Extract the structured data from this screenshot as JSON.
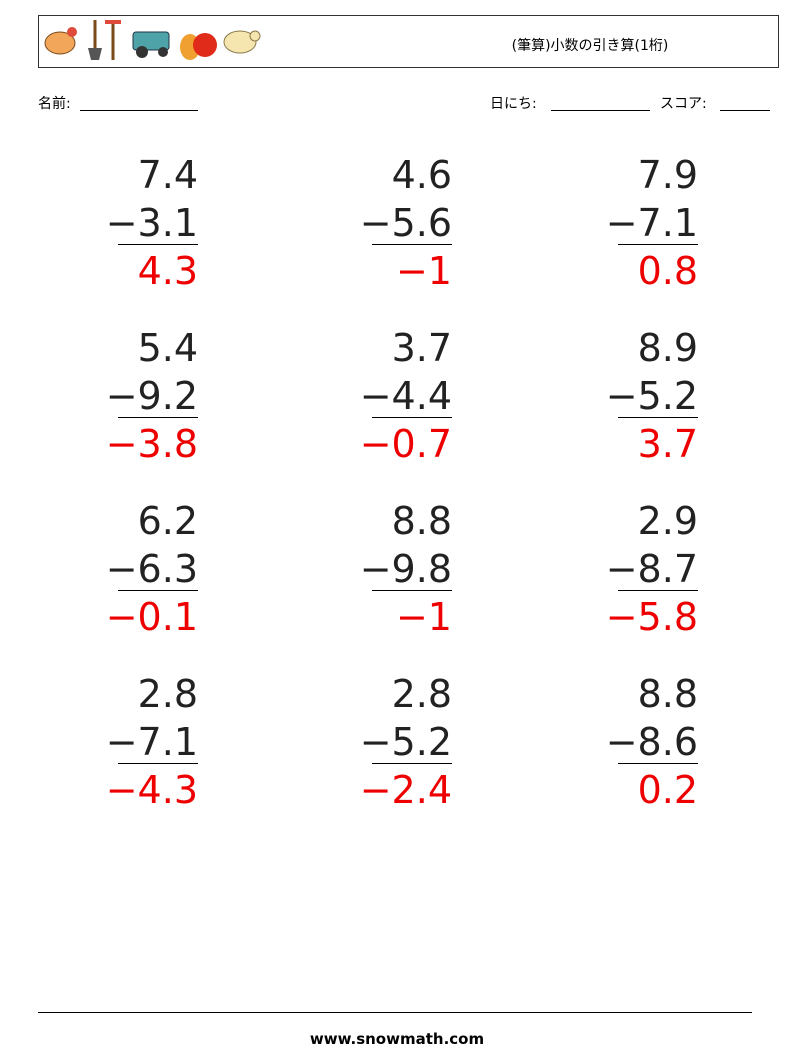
{
  "header": {
    "title": "(筆算)小数の引き算(1桁)"
  },
  "fields": {
    "name": "名前:",
    "date": "日にち:",
    "score": "スコア:"
  },
  "problems": [
    {
      "top": "7.4",
      "bottom": "−3.1",
      "answer": "4.3"
    },
    {
      "top": "4.6",
      "bottom": "−5.6",
      "answer": "−1"
    },
    {
      "top": "7.9",
      "bottom": "−7.1",
      "answer": "0.8"
    },
    {
      "top": "5.4",
      "bottom": "−9.2",
      "answer": "−3.8"
    },
    {
      "top": "3.7",
      "bottom": "−4.4",
      "answer": "−0.7"
    },
    {
      "top": "8.9",
      "bottom": "−5.2",
      "answer": "3.7"
    },
    {
      "top": "6.2",
      "bottom": "−6.3",
      "answer": "−0.1"
    },
    {
      "top": "8.8",
      "bottom": "−9.8",
      "answer": "−1"
    },
    {
      "top": "2.9",
      "bottom": "−8.7",
      "answer": "−5.8"
    },
    {
      "top": "2.8",
      "bottom": "−7.1",
      "answer": "−4.3"
    },
    {
      "top": "2.8",
      "bottom": "−5.2",
      "answer": "−2.4"
    },
    {
      "top": "8.8",
      "bottom": "−8.6",
      "answer": "0.2"
    }
  ],
  "footer": {
    "site": "www.snowmath.com"
  }
}
